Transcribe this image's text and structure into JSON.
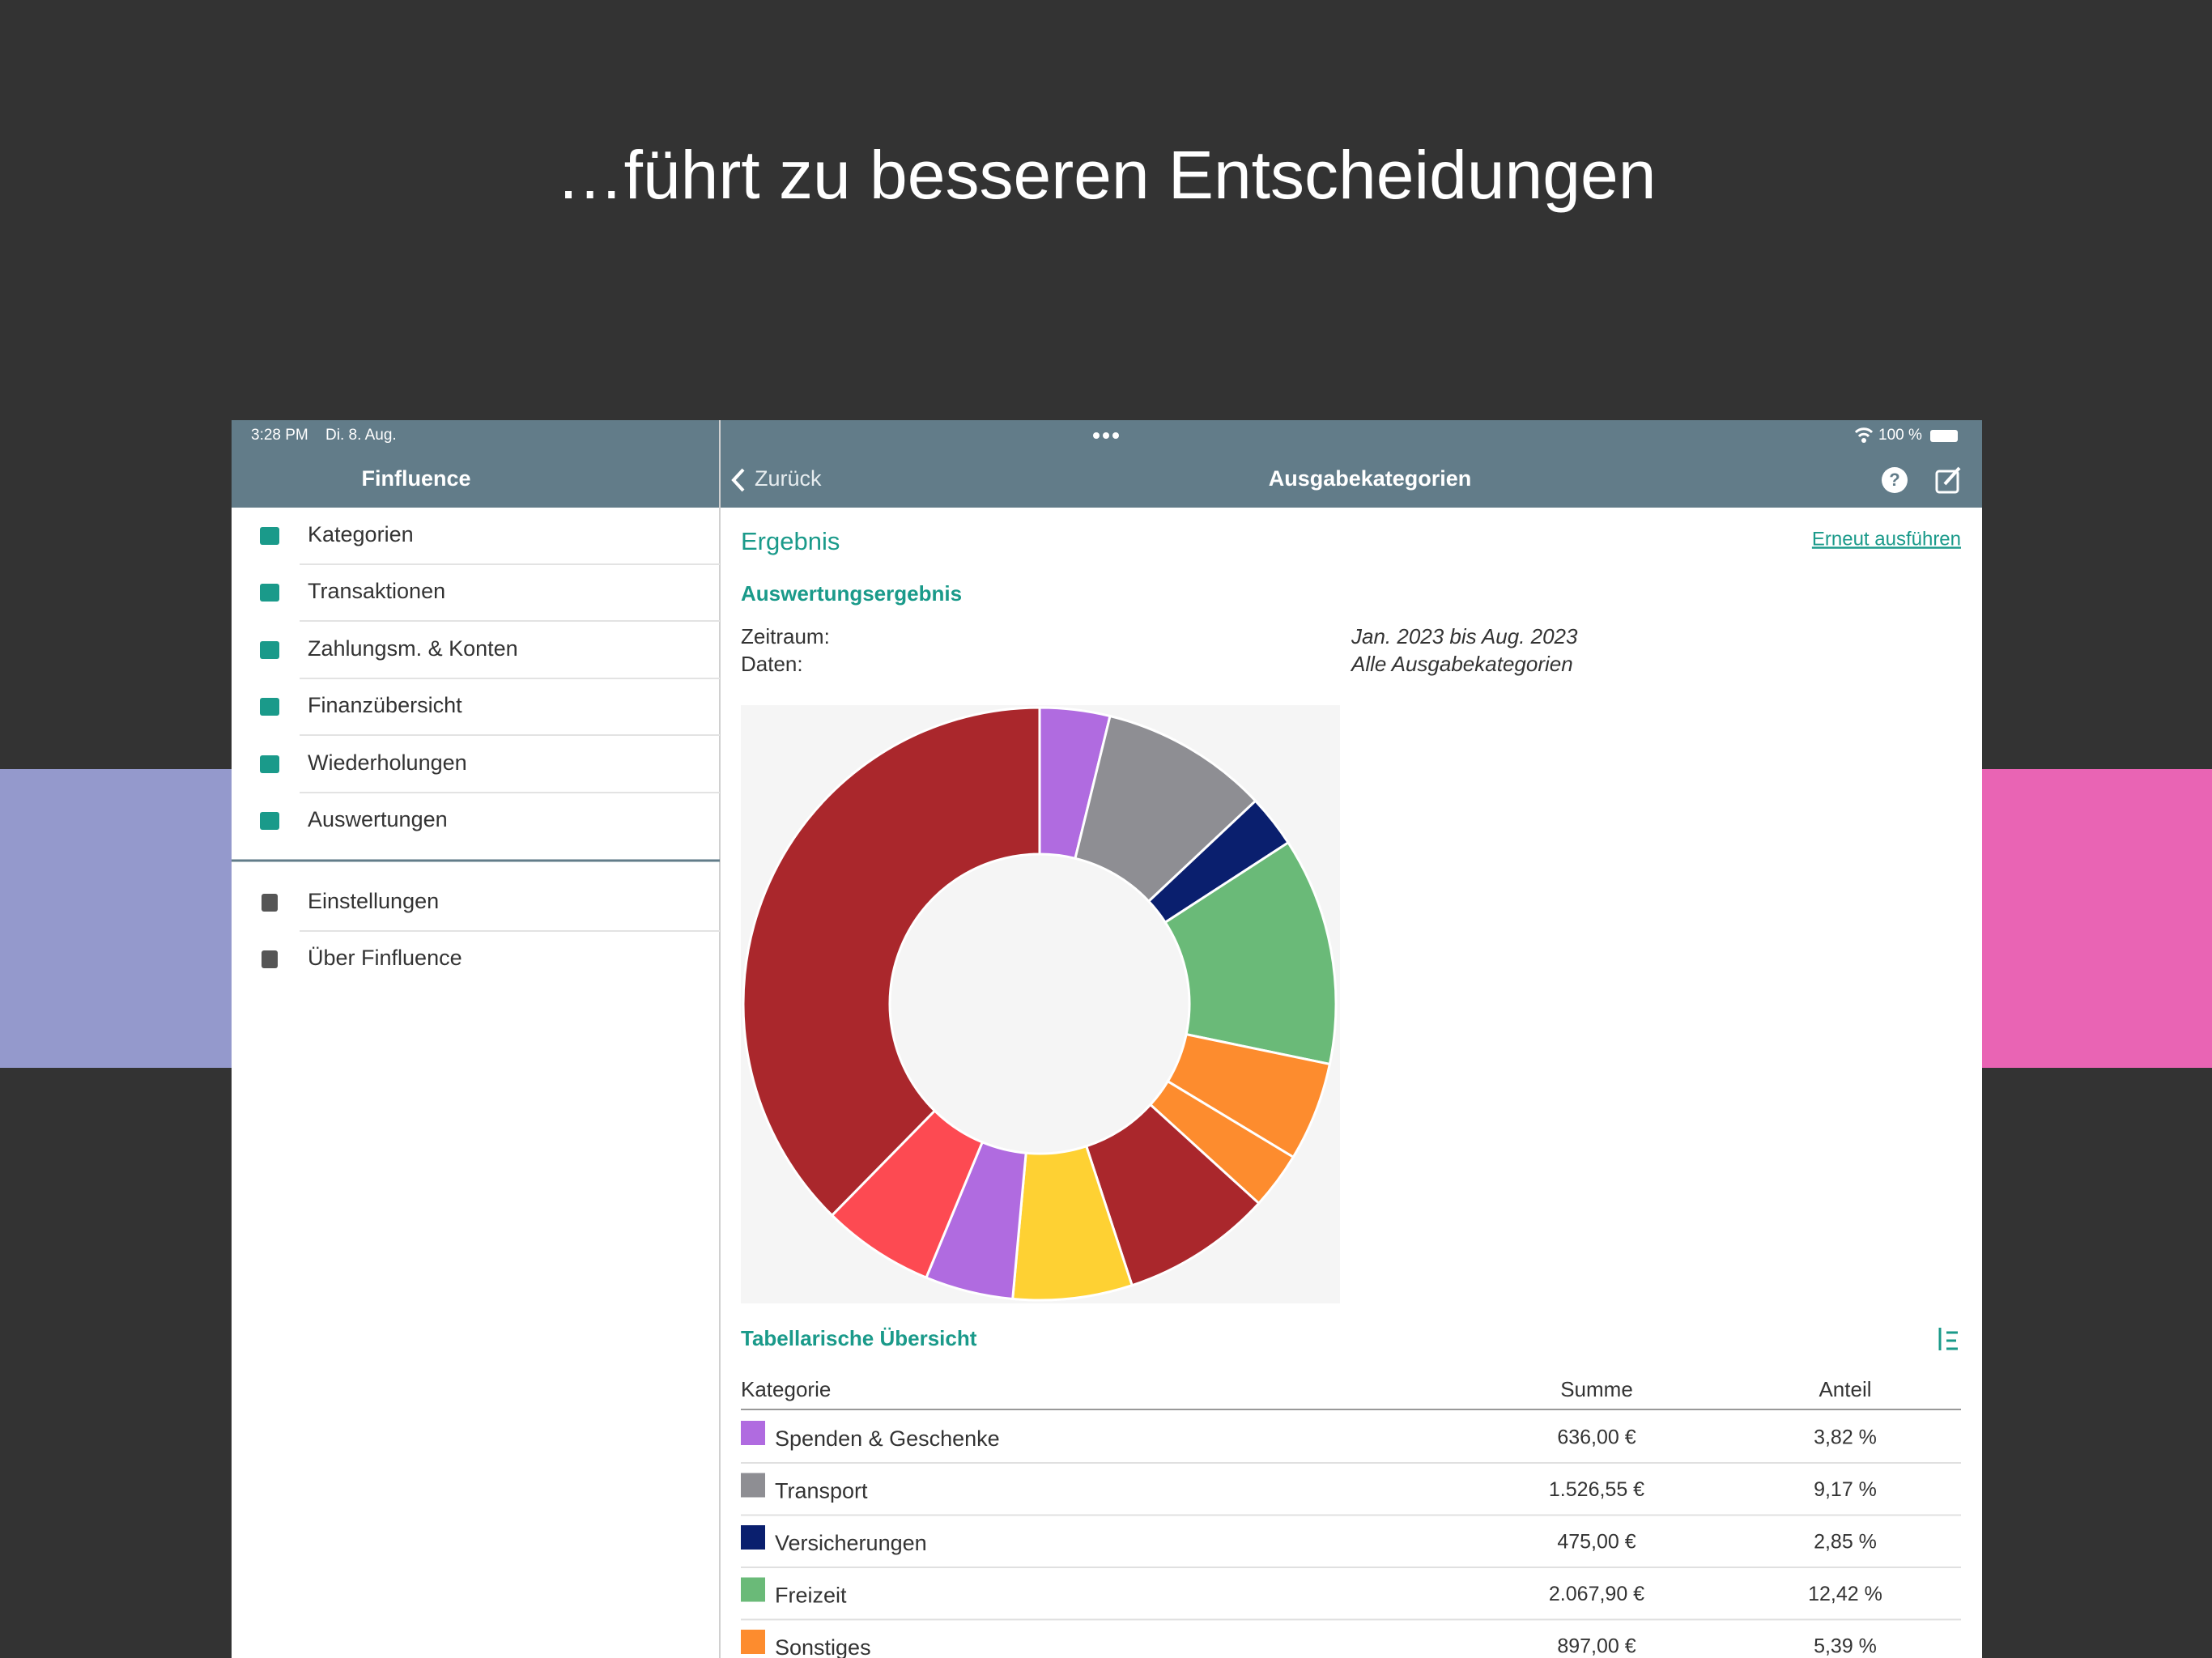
{
  "headline": "…führt zu besseren Entscheidungen",
  "status": {
    "time": "3:28 PM",
    "date": "Di. 8. Aug.",
    "battery": "100 %"
  },
  "sidebar": {
    "title": "Finfluence",
    "items": [
      "Kategorien",
      "Transaktionen",
      "Zahlungsm. & Konten",
      "Finanzübersicht",
      "Wiederholungen",
      "Auswertungen"
    ],
    "footer_items": [
      "Einstellungen",
      "Über Finfluence"
    ]
  },
  "nav": {
    "back": "Zurück",
    "title": "Ausgabekategorien"
  },
  "result": {
    "heading": "Ergebnis",
    "rerun": "Erneut ausführen",
    "subheading": "Auswertungsergebnis",
    "fields": [
      {
        "label": "Zeitraum:",
        "value": "Jan. 2023 bis Aug. 2023"
      },
      {
        "label": "Daten:",
        "value": "Alle Ausgabekategorien"
      }
    ]
  },
  "chart_data": {
    "type": "pie",
    "donut": true,
    "values": [
      3.82,
      9.17,
      2.85,
      12.42,
      5.39,
      3.1,
      8.2,
      6.5,
      4.8,
      6.1,
      37.65
    ],
    "colors": [
      "#b06be0",
      "#8e8e93",
      "#0a1f6e",
      "#6aba78",
      "#fd8c2e",
      "#fd8c2e",
      "#aa272c",
      "#fed133",
      "#b06be0",
      "#fd4a52",
      "#aa272c"
    ]
  },
  "table": {
    "title": "Tabellarische Übersicht",
    "columns": [
      "Kategorie",
      "Summe",
      "Anteil"
    ],
    "rows": [
      {
        "name": "Spenden & Geschenke",
        "sum": "636,00 €",
        "share": "3,82 %",
        "color": "#b06be0"
      },
      {
        "name": "Transport",
        "sum": "1.526,55 €",
        "share": "9,17 %",
        "color": "#8e8e93"
      },
      {
        "name": "Versicherungen",
        "sum": "475,00 €",
        "share": "2,85 %",
        "color": "#0a1f6e"
      },
      {
        "name": "Freizeit",
        "sum": "2.067,90 €",
        "share": "12,42 %",
        "color": "#6aba78"
      },
      {
        "name": "Sonstiges",
        "sum": "897,00 €",
        "share": "5,39 %",
        "color": "#fd8c2e"
      }
    ]
  }
}
